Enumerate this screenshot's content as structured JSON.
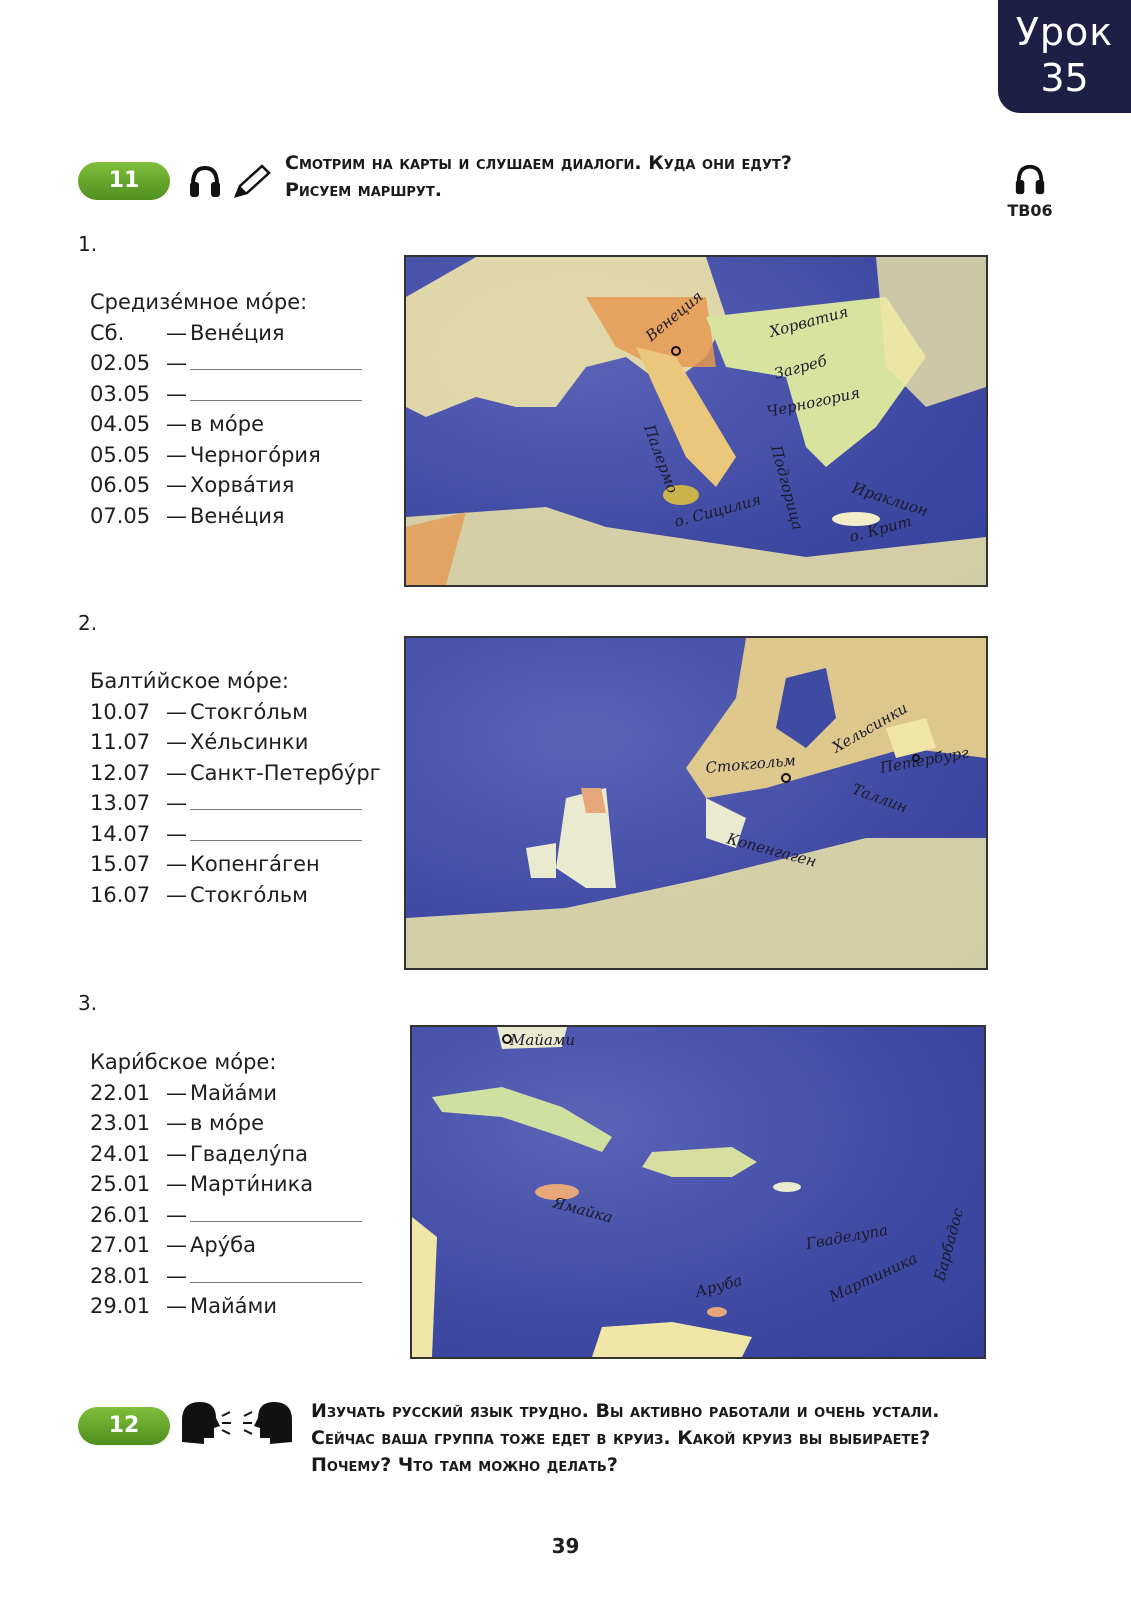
{
  "lesson": {
    "word": "Урок",
    "number": "35"
  },
  "ex11": {
    "number": "11",
    "line1": "Смотрим на карты и слушаем диалоги. Куда они едут?",
    "line2": "Рисуем маршрут.",
    "track": "ТВ06",
    "icons": [
      "headphones-icon",
      "pencil-icon"
    ]
  },
  "routes": [
    {
      "num": "1.",
      "title": "Средизе́мное мо́ре:",
      "rows": [
        {
          "date": "Сб.",
          "place": "Вене́ция"
        },
        {
          "date": "02.05",
          "place": ""
        },
        {
          "date": "03.05",
          "place": ""
        },
        {
          "date": "04.05",
          "place": "в мо́ре"
        },
        {
          "date": "05.05",
          "place": "Черного́рия"
        },
        {
          "date": "06.05",
          "place": "Хорва́тия"
        },
        {
          "date": "07.05",
          "place": "Вене́ция"
        }
      ],
      "map_labels": [
        "Венеция",
        "Хорватия",
        "Загреб",
        "Черногория",
        "Палермо",
        "Подгорица",
        "Ираклион",
        "о. Сицилия",
        "о. Крит"
      ]
    },
    {
      "num": "2.",
      "title": "Балти́йское мо́ре:",
      "rows": [
        {
          "date": "10.07",
          "place": "Стокго́льм"
        },
        {
          "date": "11.07",
          "place": "Хе́льсинки"
        },
        {
          "date": "12.07",
          "place": "Санкт-Петербу́рг"
        },
        {
          "date": "13.07",
          "place": ""
        },
        {
          "date": "14.07",
          "place": ""
        },
        {
          "date": "15.07",
          "place": "Копенга́ген"
        },
        {
          "date": "16.07",
          "place": "Стокго́льм"
        }
      ],
      "map_labels": [
        "Хельсинки",
        "Стокгольм",
        "Петербург",
        "Таллин",
        "Копенгаген"
      ]
    },
    {
      "num": "3.",
      "title": "Кари́бское мо́ре:",
      "rows": [
        {
          "date": "22.01",
          "place": "Майа́ми"
        },
        {
          "date": "23.01",
          "place": "в мо́ре"
        },
        {
          "date": "24.01",
          "place": "Гваделу́па"
        },
        {
          "date": "25.01",
          "place": "Марти́ника"
        },
        {
          "date": "26.01",
          "place": ""
        },
        {
          "date": "27.01",
          "place": "Ару́ба"
        },
        {
          "date": "28.01",
          "place": ""
        },
        {
          "date": "29.01",
          "place": "Майа́ми"
        }
      ],
      "map_labels": [
        "Майами",
        "Ямайка",
        "Гваделупа",
        "Мартиника",
        "Барбадос",
        "Аруба"
      ]
    }
  ],
  "ex12": {
    "number": "12",
    "line1": "Изучать русский язык трудно. Вы активно работали и очень устали.",
    "line2": "Сейчас ваша группа тоже едет в круиз. Какой круиз вы выбираете?",
    "line3": "Почему? Что там можно делать?",
    "icons": [
      "speaking-heads-icon"
    ]
  },
  "page_number": "39",
  "colors": {
    "tab": "#1d1f45",
    "pill": "#5f9f27",
    "sea": "#3f4aa3",
    "land": "#efe6a8"
  }
}
